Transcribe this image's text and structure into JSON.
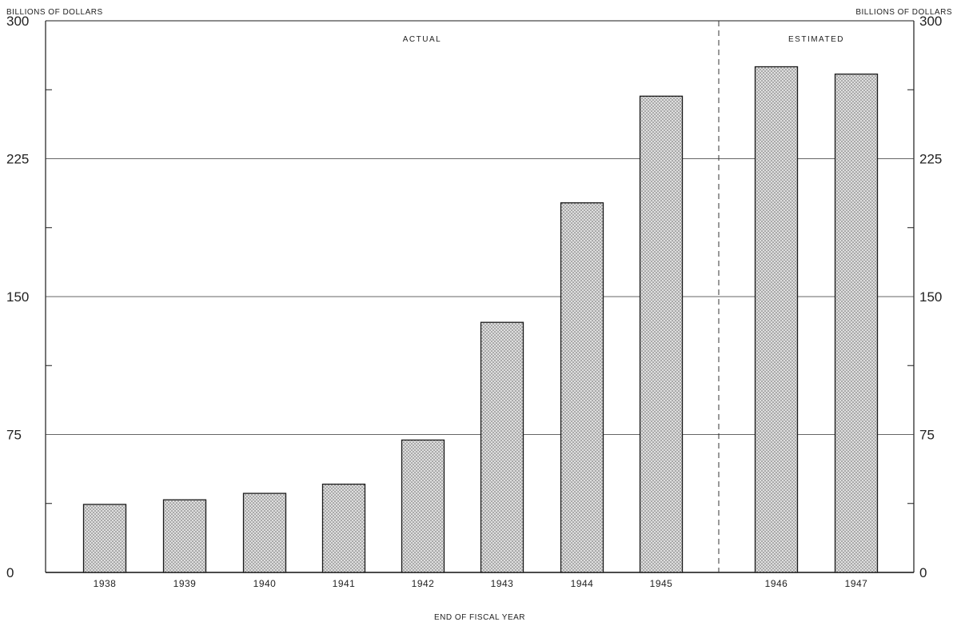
{
  "chart_data": {
    "type": "bar",
    "categories": [
      "1938",
      "1939",
      "1940",
      "1941",
      "1942",
      "1943",
      "1944",
      "1945",
      "1946",
      "1947"
    ],
    "values": [
      37,
      39.5,
      43,
      48,
      72,
      136,
      201,
      259,
      275,
      271
    ],
    "title": "",
    "xlabel": "END OF FISCAL YEAR",
    "ylabel": "BILLIONS OF DOLLARS",
    "ylabel_right": "BILLIONS OF DOLLARS",
    "ylim": [
      0,
      300
    ],
    "yticks": [
      0,
      75,
      150,
      225,
      300
    ],
    "grid": true,
    "regions": [
      {
        "label": "ACTUAL",
        "start": "1938",
        "end": "1945"
      },
      {
        "label": "ESTIMATED",
        "start": "1946",
        "end": "1947"
      }
    ],
    "colors": {
      "bar_fill": "#d9d9d9",
      "bar_stipple": "#6b6b6b",
      "bar_stroke": "#1a1a1a",
      "grid": "#333333"
    }
  }
}
